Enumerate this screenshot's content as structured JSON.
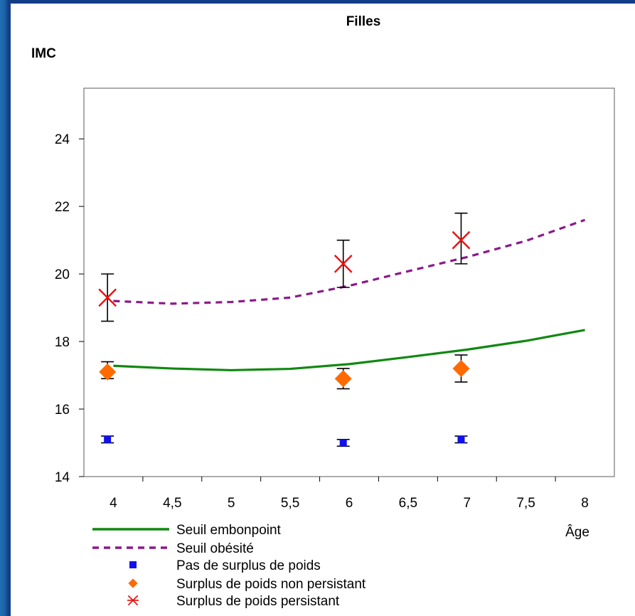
{
  "chart_data": {
    "type": "line",
    "title": "Filles",
    "ylabel": "IMC",
    "xlabel": "Âge",
    "xlim": [
      3.75,
      8.25
    ],
    "ylim": [
      14,
      25.5
    ],
    "x_ticks": [
      "4",
      "4,5",
      "5",
      "5,5",
      "6",
      "6,5",
      "7",
      "7,5",
      "8"
    ],
    "y_ticks": [
      "14",
      "16",
      "18",
      "20",
      "22",
      "24"
    ],
    "grid": false,
    "legend_position": "bottom",
    "series": [
      {
        "name": "Seuil embonpoint",
        "kind": "line",
        "color": "#118811",
        "x": [
          4,
          4.5,
          5,
          5.5,
          6,
          6.5,
          7,
          7.5,
          8
        ],
        "y": [
          17.28,
          17.2,
          17.15,
          17.19,
          17.33,
          17.54,
          17.76,
          18.02,
          18.34
        ]
      },
      {
        "name": "Seuil obésité",
        "kind": "dashed-line",
        "color": "#8a1a8a",
        "x": [
          4,
          4.5,
          5,
          5.5,
          6,
          6.5,
          7,
          7.5,
          8
        ],
        "y": [
          19.2,
          19.12,
          19.17,
          19.3,
          19.65,
          20.08,
          20.5,
          20.98,
          21.6
        ]
      },
      {
        "name": "Pas de surplus de poids",
        "kind": "points",
        "marker": "square",
        "color": "#1010ee",
        "x": [
          3.95,
          5.95,
          6.95
        ],
        "y": [
          15.1,
          15.0,
          15.1
        ],
        "err_low": [
          15.0,
          14.9,
          15.0
        ],
        "err_high": [
          15.2,
          15.1,
          15.2
        ]
      },
      {
        "name": "Surplus de poids non persistant",
        "kind": "points",
        "marker": "diamond",
        "color": "#ff6a00",
        "x": [
          3.95,
          5.95,
          6.95
        ],
        "y": [
          17.1,
          16.9,
          17.2
        ],
        "err_low": [
          16.9,
          16.6,
          16.8
        ],
        "err_high": [
          17.4,
          17.2,
          17.6
        ]
      },
      {
        "name": "Surplus de poids persistant",
        "kind": "points",
        "marker": "asterisk",
        "color": "#ee1010",
        "x": [
          3.95,
          5.95,
          6.95
        ],
        "y": [
          19.3,
          20.3,
          21.0
        ],
        "err_low": [
          18.6,
          19.6,
          20.3
        ],
        "err_high": [
          20.0,
          21.0,
          21.8
        ]
      }
    ]
  }
}
